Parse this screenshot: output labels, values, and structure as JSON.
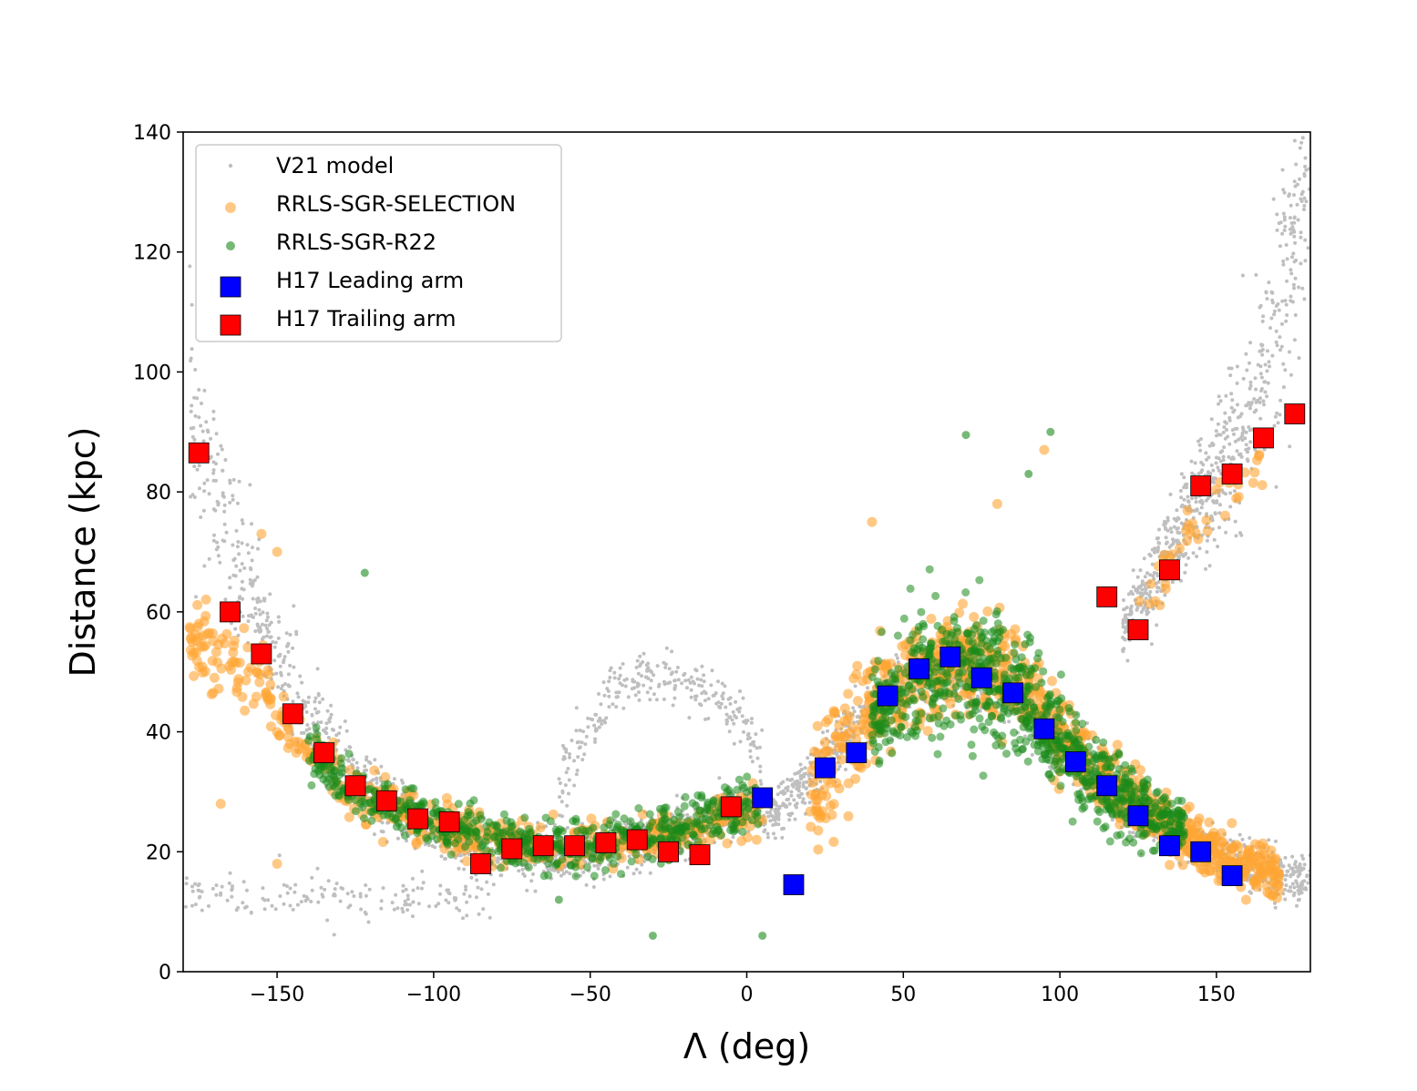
{
  "chart_data": {
    "type": "scatter",
    "title": "",
    "xlabel": "Λ (deg)",
    "ylabel": "Distance (kpc)",
    "xlim": [
      -180,
      180
    ],
    "ylim": [
      0,
      140
    ],
    "xticks": [
      -150,
      -100,
      -50,
      0,
      50,
      100,
      150
    ],
    "xtick_labels": [
      "−150",
      "−100",
      "−50",
      "0",
      "50",
      "100",
      "150"
    ],
    "yticks": [
      0,
      20,
      40,
      60,
      80,
      100,
      120,
      140
    ],
    "ytick_labels": [
      "0",
      "20",
      "40",
      "60",
      "80",
      "100",
      "120",
      "140"
    ],
    "grid": false,
    "legend_position": "upper-left",
    "colors": {
      "model": "#bfbfbf",
      "selection": "#ffa533",
      "r22": "#1a8a1a",
      "leading": "#0000ff",
      "trailing": "#ff0000"
    },
    "legend": [
      {
        "label": "V21 model",
        "series": "model",
        "marker": "dot"
      },
      {
        "label": "RRLS-SGR-SELECTION",
        "series": "selection",
        "marker": "circle"
      },
      {
        "label": "RRLS-SGR-R22",
        "series": "r22",
        "marker": "circle"
      },
      {
        "label": "H17 Leading arm",
        "series": "leading",
        "marker": "square"
      },
      {
        "label": "H17 Trailing arm",
        "series": "trailing",
        "marker": "square"
      }
    ],
    "model_tracks": [
      {
        "name": "trailing-arm-west",
        "x": [
          -178,
          -170,
          -160,
          -150,
          -140,
          -130,
          -120,
          -110,
          -100,
          -90,
          -80,
          -70,
          -60,
          -50,
          -40,
          -30,
          -20,
          -10,
          0,
          5
        ],
        "y": [
          95,
          80,
          64,
          52,
          42,
          35,
          30,
          26,
          23,
          21,
          20,
          19.5,
          19.5,
          20,
          21,
          22,
          24,
          26,
          28,
          29
        ],
        "spread": [
          12,
          11,
          9,
          7,
          6,
          5,
          4,
          3.5,
          3,
          3,
          3,
          3,
          3,
          3,
          3,
          3,
          3,
          3,
          3,
          3
        ]
      },
      {
        "name": "faint-bridge",
        "x": [
          -60,
          -50,
          -40,
          -30,
          -20,
          -10,
          0,
          5
        ],
        "y": [
          30,
          42,
          48,
          50,
          49,
          46,
          40,
          36
        ],
        "spread": [
          5,
          4,
          3,
          3,
          3,
          3,
          3,
          3
        ]
      },
      {
        "name": "leading-arm",
        "x": [
          5,
          10,
          20,
          30,
          40,
          50,
          60,
          70,
          80,
          90,
          100,
          110,
          120,
          130,
          140,
          150,
          160,
          170,
          180
        ],
        "y": [
          26,
          27,
          32,
          38,
          44,
          48,
          50,
          50,
          48,
          44,
          38,
          33,
          29,
          25,
          22,
          20,
          18,
          16,
          15
        ],
        "spread": [
          3,
          3,
          4,
          4,
          4,
          4,
          4,
          4,
          4,
          4,
          4,
          3,
          3,
          3,
          3,
          3,
          3,
          3,
          3
        ]
      },
      {
        "name": "trailing-arm-east",
        "x": [
          120,
          130,
          140,
          150,
          160,
          165,
          170,
          175,
          180
        ],
        "y": [
          57,
          66,
          74,
          82,
          92,
          100,
          112,
          125,
          140
        ],
        "spread": [
          4,
          5,
          6,
          8,
          10,
          12,
          14,
          16,
          18
        ]
      },
      {
        "name": "nearby-west",
        "x": [
          -180,
          -160,
          -140,
          -120,
          -100,
          -80
        ],
        "y": [
          14,
          13,
          12,
          12,
          12,
          12
        ],
        "spread": [
          3,
          3,
          3,
          3,
          3,
          3
        ]
      }
    ],
    "selection_tracks": [
      {
        "x": [
          -178,
          -165,
          -155,
          -145,
          -135,
          -125,
          -115,
          -105,
          -95,
          -85,
          -75,
          -65,
          -55,
          -45,
          -35,
          -25,
          -15,
          -5,
          5
        ],
        "y": [
          55,
          52,
          48,
          40,
          34,
          30,
          27,
          25,
          24,
          22,
          21,
          21,
          21,
          21,
          22,
          23,
          24,
          26,
          27
        ],
        "spread": [
          5,
          5,
          5,
          5,
          4,
          3,
          3,
          3,
          3,
          2.5,
          2.5,
          2.5,
          2.5,
          2.5,
          2.5,
          2.5,
          3,
          3,
          3
        ]
      },
      {
        "x": [
          20,
          25,
          30,
          35,
          40,
          50,
          60,
          70,
          80,
          90,
          100,
          110,
          120,
          130,
          140,
          150,
          160,
          170
        ],
        "y": [
          28,
          32,
          36,
          40,
          44,
          48,
          51,
          52,
          50,
          46,
          40,
          34,
          30,
          26,
          22,
          20,
          18,
          16
        ],
        "spread": [
          7,
          7,
          7,
          7,
          6,
          6,
          6,
          6,
          6,
          6,
          5,
          4,
          4,
          3,
          3,
          3,
          3,
          3
        ]
      },
      {
        "x": [
          125,
          130,
          135,
          140,
          145,
          150,
          155,
          160,
          165
        ],
        "y": [
          60,
          64,
          68,
          72,
          75,
          78,
          81,
          83,
          85
        ],
        "spread": [
          3,
          3,
          3,
          3,
          3,
          3,
          3,
          3,
          3
        ]
      }
    ],
    "r22_tracks": [
      {
        "x": [
          -140,
          -130,
          -120,
          -110,
          -100,
          -90,
          -80,
          -70,
          -60,
          -50,
          -40,
          -30,
          -20,
          -10,
          0,
          5
        ],
        "y": [
          37,
          32,
          29,
          27,
          25,
          23,
          22,
          21,
          21,
          21,
          22,
          23,
          24,
          26,
          27,
          28
        ],
        "spread": [
          3,
          3,
          3,
          3,
          3,
          3,
          3,
          3,
          3,
          3,
          3,
          3,
          3,
          3,
          3,
          3
        ]
      },
      {
        "x": [
          40,
          50,
          60,
          70,
          80,
          90,
          100,
          110,
          120,
          130,
          140
        ],
        "y": [
          42,
          47,
          50,
          51,
          48,
          44,
          38,
          33,
          29,
          26,
          24
        ],
        "spread": [
          6,
          7,
          7,
          7,
          7,
          7,
          6,
          5,
          5,
          4,
          3
        ]
      }
    ],
    "series": [
      {
        "name": "H17 Leading arm",
        "marker": "square",
        "color": "#0000ff",
        "points": [
          [
            5,
            29
          ],
          [
            15,
            14.5
          ],
          [
            25,
            34
          ],
          [
            35,
            36.5
          ],
          [
            45,
            46
          ],
          [
            55,
            50.5
          ],
          [
            65,
            52.5
          ],
          [
            75,
            49
          ],
          [
            85,
            46.5
          ],
          [
            95,
            40.5
          ],
          [
            105,
            35
          ],
          [
            115,
            31
          ],
          [
            125,
            26
          ],
          [
            135,
            21
          ],
          [
            145,
            20
          ],
          [
            155,
            16
          ]
        ]
      },
      {
        "name": "H17 Trailing arm",
        "marker": "square",
        "color": "#ff0000",
        "points": [
          [
            -175,
            86.5
          ],
          [
            -165,
            60
          ],
          [
            -155,
            53
          ],
          [
            -145,
            43
          ],
          [
            -135,
            36.5
          ],
          [
            -125,
            31
          ],
          [
            -115,
            28.5
          ],
          [
            -105,
            25.5
          ],
          [
            -95,
            25
          ],
          [
            -85,
            18
          ],
          [
            -75,
            20.5
          ],
          [
            -65,
            21
          ],
          [
            -55,
            21
          ],
          [
            -45,
            21.5
          ],
          [
            -35,
            22
          ],
          [
            -25,
            20
          ],
          [
            -15,
            19.5
          ],
          [
            -5,
            27.5
          ],
          [
            115,
            62.5
          ],
          [
            125,
            57
          ],
          [
            135,
            67
          ],
          [
            145,
            81
          ],
          [
            155,
            83
          ],
          [
            165,
            89
          ],
          [
            175,
            93
          ]
        ]
      }
    ],
    "outliers": {
      "selection": [
        [
          -155,
          73
        ],
        [
          -150,
          70
        ],
        [
          -175,
          58
        ],
        [
          -170,
          49
        ],
        [
          -168,
          28
        ],
        [
          -150,
          18
        ],
        [
          40,
          75
        ],
        [
          95,
          87
        ],
        [
          80,
          78
        ]
      ],
      "r22": [
        [
          -122,
          66.5
        ],
        [
          70,
          89.5
        ],
        [
          97,
          90
        ],
        [
          90,
          83
        ],
        [
          -30,
          6
        ],
        [
          5,
          6
        ],
        [
          -60,
          12
        ]
      ]
    }
  }
}
